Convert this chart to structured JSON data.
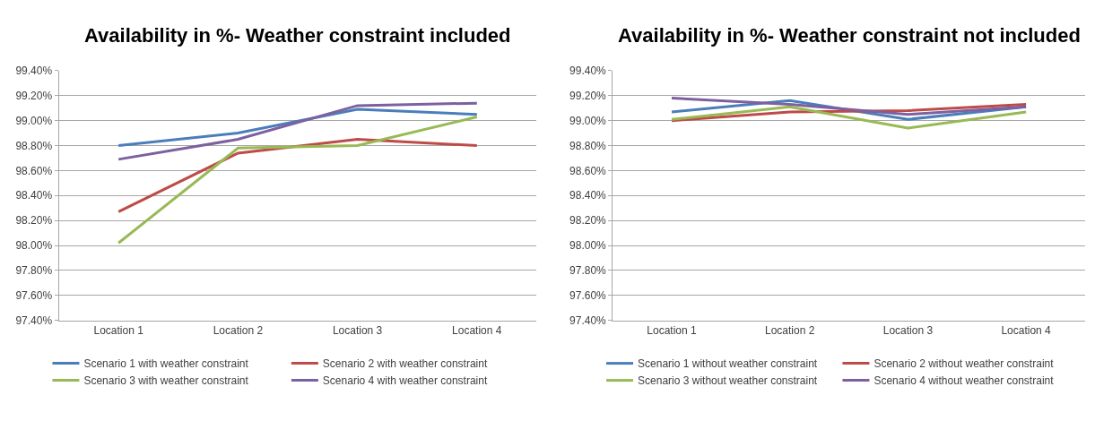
{
  "chart_data": [
    {
      "type": "line",
      "title": "Availability in %- Weather constraint included",
      "categories": [
        "Location 1",
        "Location 2",
        "Location 3",
        "Location 4"
      ],
      "series": [
        {
          "name": "Scenario 1 with weather constraint",
          "color": "#4a7ebb",
          "values": [
            98.8,
            98.9,
            99.09,
            99.05
          ]
        },
        {
          "name": "Scenario 2 with weather constraint",
          "color": "#be4b48",
          "values": [
            98.27,
            98.74,
            98.85,
            98.8
          ]
        },
        {
          "name": "Scenario 3 with weather constraint",
          "color": "#98b954",
          "values": [
            98.02,
            98.78,
            98.8,
            99.03
          ]
        },
        {
          "name": "Scenario 4 with weather constraint",
          "color": "#7d60a0",
          "values": [
            98.69,
            98.85,
            99.12,
            99.14
          ]
        }
      ],
      "ylim": [
        97.4,
        99.4
      ],
      "yticks": [
        {
          "value": 97.4,
          "label": "97.40%"
        },
        {
          "value": 97.6,
          "label": "97.60%"
        },
        {
          "value": 97.8,
          "label": "97.80%"
        },
        {
          "value": 98.0,
          "label": "98.00%"
        },
        {
          "value": 98.2,
          "label": "98.20%"
        },
        {
          "value": 98.4,
          "label": "98.40%"
        },
        {
          "value": 98.6,
          "label": "98.60%"
        },
        {
          "value": 98.8,
          "label": "98.80%"
        },
        {
          "value": 99.0,
          "label": "99.00%"
        },
        {
          "value": 99.2,
          "label": "99.20%"
        },
        {
          "value": 99.4,
          "label": "99.40%"
        }
      ],
      "grid": "y",
      "legend": "bottom",
      "marker": "none"
    },
    {
      "type": "line",
      "title": "Availability in %- Weather constraint not included",
      "categories": [
        "Location 1",
        "Location 2",
        "Location 3",
        "Location 4"
      ],
      "series": [
        {
          "name": "Scenario 1 without weather constraint",
          "color": "#4a7ebb",
          "values": [
            99.07,
            99.16,
            99.01,
            99.11
          ]
        },
        {
          "name": "Scenario 2 without weather constraint",
          "color": "#be4b48",
          "values": [
            99.0,
            99.07,
            99.08,
            99.13
          ]
        },
        {
          "name": "Scenario 3 without weather constraint",
          "color": "#98b954",
          "values": [
            99.01,
            99.11,
            98.94,
            99.07
          ]
        },
        {
          "name": "Scenario 4 without weather constraint",
          "color": "#7d60a0",
          "values": [
            99.18,
            99.13,
            99.05,
            99.11
          ]
        }
      ],
      "ylim": [
        97.4,
        99.4
      ],
      "yticks": [
        {
          "value": 97.4,
          "label": "97.40%"
        },
        {
          "value": 97.6,
          "label": "97.60%"
        },
        {
          "value": 97.8,
          "label": "97.80%"
        },
        {
          "value": 98.0,
          "label": "98.00%"
        },
        {
          "value": 98.2,
          "label": "98.20%"
        },
        {
          "value": 98.4,
          "label": "98.40%"
        },
        {
          "value": 98.6,
          "label": "98.60%"
        },
        {
          "value": 98.8,
          "label": "98.80%"
        },
        {
          "value": 99.0,
          "label": "99.00%"
        },
        {
          "value": 99.2,
          "label": "99.20%"
        },
        {
          "value": 99.4,
          "label": "99.40%"
        }
      ],
      "grid": "y",
      "legend": "bottom",
      "marker": "none"
    }
  ]
}
